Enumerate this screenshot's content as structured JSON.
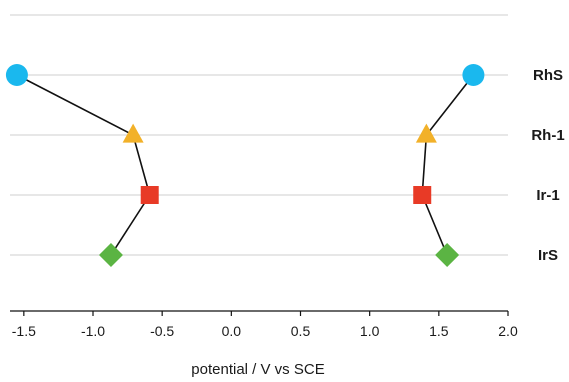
{
  "chart_data": {
    "type": "scatter",
    "title": "",
    "xlabel": "potential / V vs SCE",
    "ylabel": "",
    "xlim": [
      -1.6,
      2.0
    ],
    "xticks": [
      "-1.5",
      "-1.0",
      "-0.5",
      "0.0",
      "0.5",
      "1.0",
      "1.5",
      "2.0"
    ],
    "xtick_values": [
      -1.5,
      -1.0,
      -0.5,
      0.0,
      0.5,
      1.0,
      1.5,
      2.0
    ],
    "grid": "horizontal",
    "categories": [
      "RhS",
      "Rh-1",
      "Ir-1",
      "IrS"
    ],
    "series": [
      {
        "values": [
          -1.55,
          -0.71,
          -0.59,
          -0.87
        ],
        "markers": [
          "circle",
          "triangle",
          "square",
          "diamond"
        ]
      },
      {
        "values": [
          1.75,
          1.41,
          1.38,
          1.56
        ],
        "markers": [
          "circle",
          "triangle",
          "square",
          "diamond"
        ]
      }
    ],
    "marker_colors": {
      "RhS": "#1ab8ee",
      "Rh-1": "#f2b129",
      "Ir-1": "#e83a26",
      "IrS": "#5bb443"
    },
    "line_color": "#111111",
    "grid_color": "#cfcfcf"
  }
}
